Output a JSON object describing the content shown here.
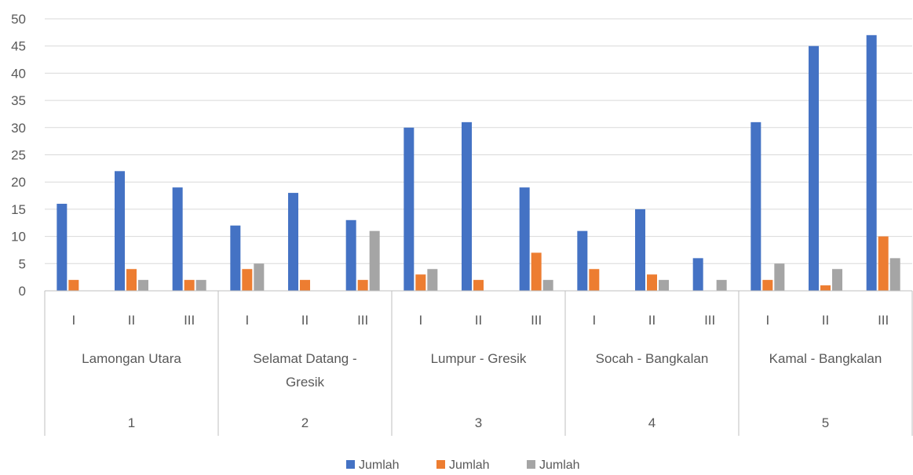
{
  "chart_data": {
    "type": "bar",
    "ylim": [
      0,
      50
    ],
    "yticks": [
      0,
      5,
      10,
      15,
      20,
      25,
      30,
      35,
      40,
      45,
      50
    ],
    "grid": true,
    "legend_position": "bottom",
    "groups": [
      {
        "number": "1",
        "location": "Lamongan Utara",
        "location_lines": [
          "Lamongan Utara"
        ],
        "subcategories": [
          "I",
          "II",
          "III"
        ]
      },
      {
        "number": "2",
        "location": "Selamat Datang - Gresik",
        "location_lines": [
          "Selamat Datang -",
          "Gresik"
        ],
        "subcategories": [
          "I",
          "II",
          "III"
        ]
      },
      {
        "number": "3",
        "location": "Lumpur - Gresik",
        "location_lines": [
          "Lumpur - Gresik"
        ],
        "subcategories": [
          "I",
          "II",
          "III"
        ]
      },
      {
        "number": "4",
        "location": "Socah - Bangkalan",
        "location_lines": [
          "Socah - Bangkalan"
        ],
        "subcategories": [
          "I",
          "II",
          "III"
        ]
      },
      {
        "number": "5",
        "location": "Kamal - Bangkalan",
        "location_lines": [
          "Kamal - Bangkalan"
        ],
        "subcategories": [
          "I",
          "II",
          "III"
        ]
      }
    ],
    "series": [
      {
        "name": "Jumlah",
        "color": "#4472c4",
        "values": [
          16,
          22,
          19,
          12,
          18,
          13,
          30,
          31,
          19,
          11,
          15,
          6,
          31,
          45,
          47
        ]
      },
      {
        "name": "Jumlah",
        "color": "#ed7d31",
        "values": [
          2,
          4,
          2,
          4,
          2,
          2,
          3,
          2,
          7,
          4,
          3,
          0,
          2,
          1,
          10
        ]
      },
      {
        "name": "Jumlah",
        "color": "#a5a5a5",
        "values": [
          0,
          2,
          2,
          5,
          0,
          11,
          4,
          0,
          2,
          0,
          2,
          2,
          5,
          4,
          6
        ]
      }
    ]
  }
}
